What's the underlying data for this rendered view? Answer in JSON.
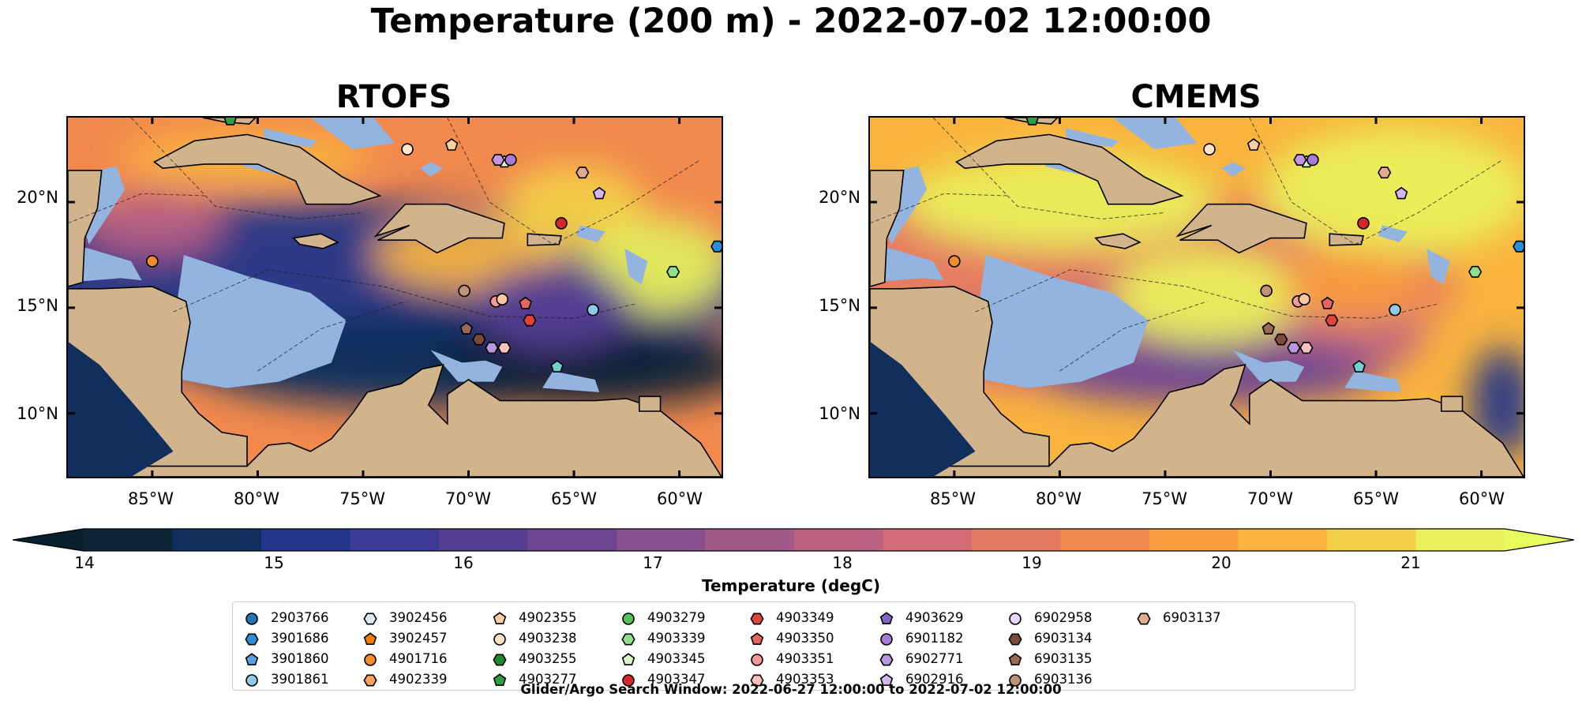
{
  "figure": {
    "suptitle": "Temperature (200 m) - 2022-07-02 12:00:00",
    "search_window": "Glider/Argo Search Window: 2022-06-27 12:00:00 to 2022-07-02 12:00:00"
  },
  "maps": [
    {
      "title": "RTOFS",
      "palette_bias": "cool"
    },
    {
      "title": "CMEMS",
      "palette_bias": "warm"
    }
  ],
  "axes": {
    "lat_ticks": [
      "20°N",
      "15°N",
      "10°N"
    ],
    "lon_ticks": [
      "85°W",
      "80°W",
      "75°W",
      "70°W",
      "65°W",
      "60°W"
    ],
    "lon_range": [
      -89,
      -58
    ],
    "lat_range": [
      7,
      24
    ]
  },
  "colorbar": {
    "label": "Temperature (degC)",
    "ticks": [
      "14",
      "15",
      "16",
      "17",
      "18",
      "19",
      "20",
      "21"
    ],
    "range": [
      14,
      21.5
    ],
    "extend": "both",
    "colors": [
      "#0d2436",
      "#102f5c",
      "#243689",
      "#3c3a95",
      "#553d92",
      "#6c4592",
      "#86508f",
      "#a05a89",
      "#bb6283",
      "#d26c76",
      "#e47a62",
      "#f2894d",
      "#f99c3f",
      "#f9b43f",
      "#f4d049",
      "#eaf05b"
    ],
    "under_color": "#07202e",
    "over_color": "#e8fb5c"
  },
  "land_color": "#d2b48c",
  "shelf_color": "#94b4e0",
  "floats": [
    {
      "id": "2903766",
      "marker": "circle",
      "color": "#1f77b4",
      "lon": null,
      "lat": null
    },
    {
      "id": "3901686",
      "marker": "hexagon",
      "color": "#2a8ed6",
      "lon": -58.2,
      "lat": 17.9
    },
    {
      "id": "3901860",
      "marker": "pentagon",
      "color": "#5aa0e0",
      "lon": null,
      "lat": null
    },
    {
      "id": "3901861",
      "marker": "circle",
      "color": "#8fcbe6",
      "lon": -64.1,
      "lat": 14.9
    },
    {
      "id": "3902456",
      "marker": "hexagon",
      "color": "#d7ebf7",
      "lon": null,
      "lat": null
    },
    {
      "id": "3902457",
      "marker": "pentagon",
      "color": "#f57c00",
      "lon": null,
      "lat": null
    },
    {
      "id": "4901716",
      "marker": "circle",
      "color": "#f08c2a",
      "lon": -85.0,
      "lat": 17.2
    },
    {
      "id": "4902339",
      "marker": "hexagon",
      "color": "#f4a460",
      "lon": null,
      "lat": null
    },
    {
      "id": "4902355",
      "marker": "pentagon",
      "color": "#f7cfa0",
      "lon": -70.8,
      "lat": 22.7
    },
    {
      "id": "4903238",
      "marker": "circle",
      "color": "#fde4c6",
      "lon": -72.9,
      "lat": 22.5
    },
    {
      "id": "4903255",
      "marker": "hexagon",
      "color": "#1e8a2a",
      "lon": null,
      "lat": null
    },
    {
      "id": "4903277",
      "marker": "pentagon",
      "color": "#2ea043",
      "lon": -81.3,
      "lat": 23.9
    },
    {
      "id": "4903279",
      "marker": "circle",
      "color": "#55c15c",
      "lon": null,
      "lat": null
    },
    {
      "id": "4903339",
      "marker": "hexagon",
      "color": "#8ee08b",
      "lon": -60.3,
      "lat": 16.7
    },
    {
      "id": "4903345",
      "marker": "pentagon",
      "color": "#d7f5c8",
      "lon": -68.3,
      "lat": 21.9
    },
    {
      "id": "4903347",
      "marker": "circle",
      "color": "#d62728",
      "lon": -65.6,
      "lat": 19.0
    },
    {
      "id": "4903349",
      "marker": "hexagon",
      "color": "#e0443c",
      "lon": -67.1,
      "lat": 14.4
    },
    {
      "id": "4903350",
      "marker": "pentagon",
      "color": "#e8655f",
      "lon": -67.3,
      "lat": 15.2
    },
    {
      "id": "4903351",
      "marker": "circle",
      "color": "#f29a94",
      "lon": -68.7,
      "lat": 15.3
    },
    {
      "id": "4903353",
      "marker": "hexagon",
      "color": "#f8c3bd",
      "lon": -68.3,
      "lat": 13.1
    },
    {
      "id": "4903629",
      "marker": "pentagon",
      "color": "#8463c7",
      "lon": null,
      "lat": null
    },
    {
      "id": "6901182",
      "marker": "circle",
      "color": "#a57bd8",
      "lon": -68.0,
      "lat": 22.0
    },
    {
      "id": "6902771",
      "marker": "hexagon",
      "color": "#b997e0",
      "lon": -68.9,
      "lat": 13.1
    },
    {
      "id": "6902916",
      "marker": "pentagon",
      "color": "#d4b6ef",
      "lon": -63.8,
      "lat": 20.4
    },
    {
      "id": "6902958",
      "marker": "circle",
      "color": "#ecd5fb",
      "lon": null,
      "lat": null
    },
    {
      "id": "6903134",
      "marker": "hexagon",
      "color": "#7b4a3c",
      "lon": -69.5,
      "lat": 13.5
    },
    {
      "id": "6903135",
      "marker": "pentagon",
      "color": "#9b6a55",
      "lon": -70.1,
      "lat": 14.0
    },
    {
      "id": "6903136",
      "marker": "circle",
      "color": "#c19277",
      "lon": -70.2,
      "lat": 15.8
    },
    {
      "id": "6903137",
      "marker": "hexagon",
      "color": "#e3ab8d",
      "lon": -64.6,
      "lat": 21.4
    },
    {
      "id": "extra-1",
      "marker": "pentagon",
      "color": "#6fd0cc",
      "lon": -65.8,
      "lat": 12.2,
      "legend": false
    },
    {
      "id": "extra-2",
      "marker": "circle",
      "color": "#f7c8a0",
      "lon": -68.4,
      "lat": 15.4,
      "legend": false
    },
    {
      "id": "extra-3",
      "marker": "hexagon",
      "color": "#c097e0",
      "lon": -68.6,
      "lat": 22.0,
      "legend": false
    }
  ]
}
